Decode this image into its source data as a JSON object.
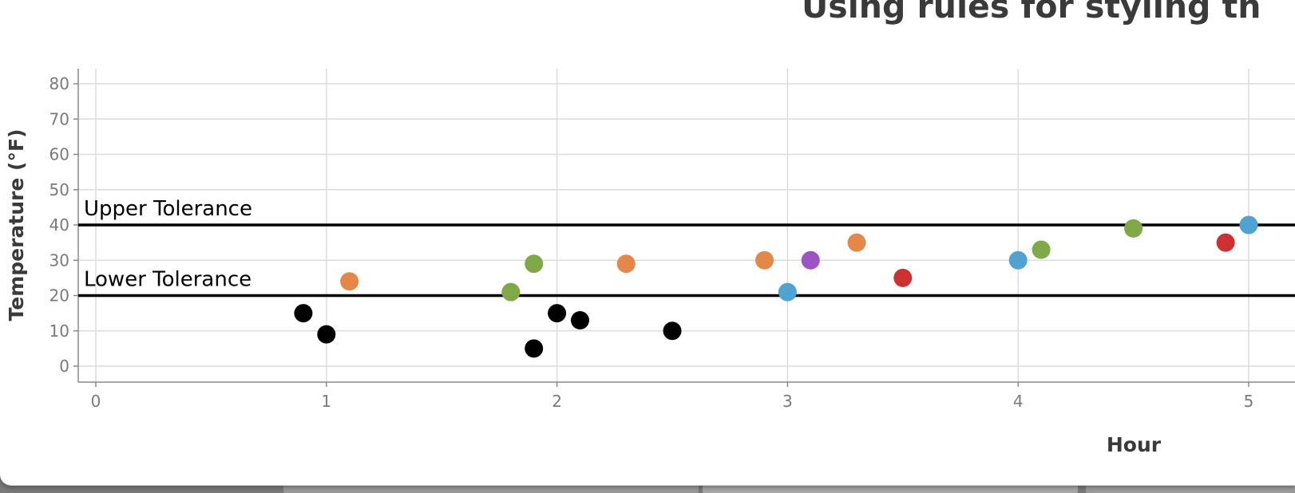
{
  "window": {
    "background": "#ffffff"
  },
  "chart_data": {
    "type": "scatter",
    "title": "Using rules for styling th",
    "xlabel": "Hour",
    "ylabel": "Temperature (°F)",
    "xlim": [
      0,
      5
    ],
    "ylim": [
      0,
      80
    ],
    "x_ticks": [
      "0",
      "1",
      "2",
      "3",
      "4",
      "5"
    ],
    "y_ticks": [
      "0",
      "10",
      "20",
      "30",
      "40",
      "50",
      "60",
      "70",
      "80"
    ],
    "grid": true,
    "rules": [
      {
        "label": "Upper Tolerance",
        "y": 40
      },
      {
        "label": "Lower Tolerance",
        "y": 20
      }
    ],
    "points": [
      {
        "x": 0.9,
        "y": 15,
        "color": "#000000"
      },
      {
        "x": 1.0,
        "y": 9,
        "color": "#000000"
      },
      {
        "x": 1.1,
        "y": 24,
        "color": "#e4884a"
      },
      {
        "x": 1.8,
        "y": 21,
        "color": "#7fa846"
      },
      {
        "x": 1.9,
        "y": 29,
        "color": "#7fa846"
      },
      {
        "x": 1.9,
        "y": 5,
        "color": "#000000"
      },
      {
        "x": 2.0,
        "y": 15,
        "color": "#000000"
      },
      {
        "x": 2.1,
        "y": 13,
        "color": "#000000"
      },
      {
        "x": 2.3,
        "y": 29,
        "color": "#e4884a"
      },
      {
        "x": 2.5,
        "y": 10,
        "color": "#000000"
      },
      {
        "x": 2.9,
        "y": 30,
        "color": "#e4884a"
      },
      {
        "x": 3.0,
        "y": 21,
        "color": "#4ea3d0"
      },
      {
        "x": 3.1,
        "y": 30,
        "color": "#9b53c6"
      },
      {
        "x": 3.3,
        "y": 35,
        "color": "#e4884a"
      },
      {
        "x": 3.5,
        "y": 25,
        "color": "#cc3030"
      },
      {
        "x": 4.0,
        "y": 30,
        "color": "#4ea3d0"
      },
      {
        "x": 4.1,
        "y": 33,
        "color": "#7fa846"
      },
      {
        "x": 4.5,
        "y": 39,
        "color": "#7fa846"
      },
      {
        "x": 4.9,
        "y": 35,
        "color": "#cc3030"
      },
      {
        "x": 5.0,
        "y": 40,
        "color": "#4ea3d0"
      }
    ]
  }
}
